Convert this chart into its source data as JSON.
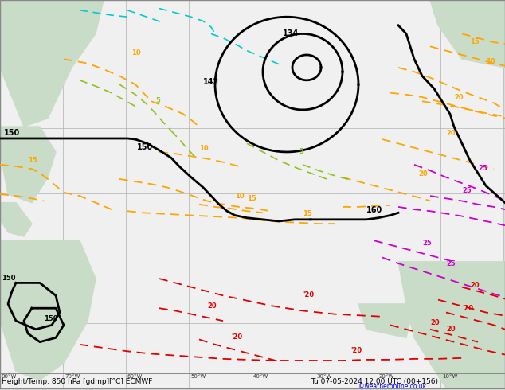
{
  "title_left": "Height/Temp. 850 hPa [gdmp][°C] ECMWF",
  "title_right": "Tu 07-05-2024 12:00 UTC (00+156)",
  "copyright": "©weatheronline.co.uk",
  "background_color": "#e8e8e8",
  "map_bg_color": "#d8ecd8",
  "ocean_color": "#f0f0f0",
  "grid_color": "#b0b0b0",
  "label_color_black": "#000000",
  "label_color_orange": "#ffa500",
  "label_color_green": "#80c000",
  "label_color_red": "#e00000",
  "label_color_magenta": "#cc00cc",
  "label_color_cyan": "#00cccc",
  "figsize": [
    6.34,
    4.9
  ],
  "dpi": 100
}
